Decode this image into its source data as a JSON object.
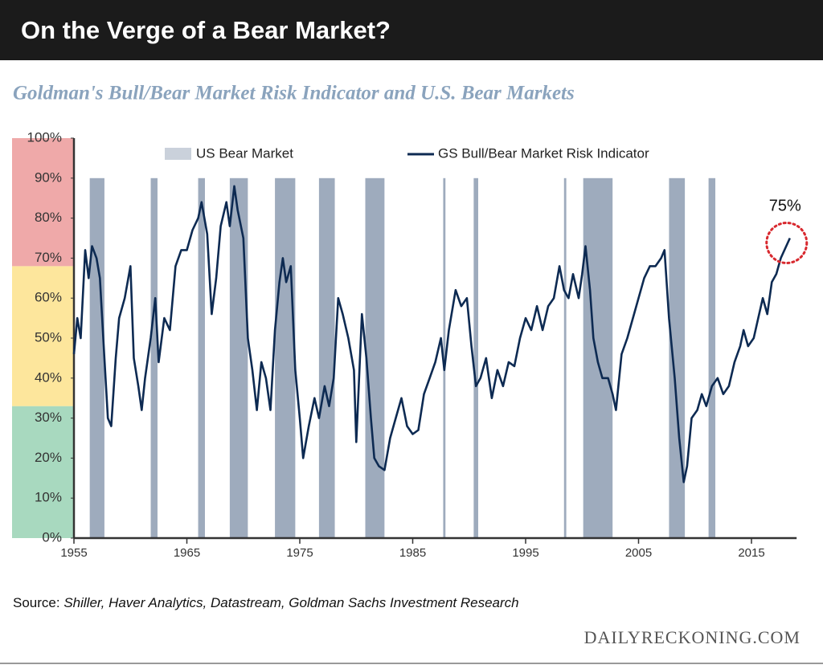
{
  "header": {
    "title": "On the Verge of a Bear Market?"
  },
  "chart_data": {
    "type": "line",
    "title": "Goldman's Bull/Bear Market Risk Indicator and U.S. Bear Markets",
    "xlim": [
      1955,
      2019
    ],
    "xticks": [
      1955,
      1965,
      1975,
      1985,
      1995,
      2005,
      2015
    ],
    "ylim": [
      0,
      100
    ],
    "yticks": [
      {
        "value": 0,
        "label": "0%"
      },
      {
        "value": 10,
        "label": "10%"
      },
      {
        "value": 20,
        "label": "20%"
      },
      {
        "value": 30,
        "label": "30%"
      },
      {
        "value": 40,
        "label": "40%"
      },
      {
        "value": 50,
        "label": "50%"
      },
      {
        "value": 60,
        "label": "60%"
      },
      {
        "value": 70,
        "label": "70%"
      },
      {
        "value": 80,
        "label": "80%"
      },
      {
        "value": 90,
        "label": "90%"
      },
      {
        "value": 100,
        "label": "100%"
      }
    ],
    "zones": [
      {
        "from": 0,
        "to": 33,
        "color": "#a8d9bf"
      },
      {
        "from": 33,
        "to": 68,
        "color": "#fde69c"
      },
      {
        "from": 68,
        "to": 100,
        "color": "#efa9a9"
      }
    ],
    "bear_markets": {
      "name": "US Bear Market",
      "color": "#9eabbd",
      "top": 90,
      "spans": [
        [
          1956.4,
          1957.7
        ],
        [
          1961.8,
          1962.4
        ],
        [
          1966.0,
          1966.6
        ],
        [
          1968.8,
          1970.4
        ],
        [
          1972.8,
          1974.6
        ],
        [
          1976.7,
          1978.1
        ],
        [
          1980.8,
          1982.5
        ],
        [
          1987.7,
          1987.9
        ],
        [
          1990.4,
          1990.8
        ],
        [
          1998.4,
          1998.6
        ],
        [
          2000.1,
          2002.7
        ],
        [
          2007.7,
          2009.1
        ],
        [
          2011.2,
          2011.8
        ]
      ]
    },
    "series": [
      {
        "name": "GS Bull/Bear Market Risk Indicator",
        "color": "#0d2a52",
        "x": [
          1955,
          1955.3,
          1955.6,
          1956,
          1956.3,
          1956.6,
          1957,
          1957.3,
          1957.7,
          1958,
          1958.3,
          1958.7,
          1959,
          1959.5,
          1960,
          1960.3,
          1960.7,
          1961,
          1961.3,
          1961.8,
          1962.2,
          1962.5,
          1963,
          1963.5,
          1964,
          1964.5,
          1965,
          1965.5,
          1966,
          1966.3,
          1966.8,
          1967.2,
          1967.6,
          1968,
          1968.5,
          1968.8,
          1969.2,
          1969.5,
          1970,
          1970.4,
          1970.8,
          1971.2,
          1971.6,
          1972,
          1972.4,
          1972.8,
          1973.2,
          1973.5,
          1973.8,
          1974.2,
          1974.6,
          1975,
          1975.3,
          1975.8,
          1976.3,
          1976.7,
          1977.2,
          1977.6,
          1978,
          1978.4,
          1978.8,
          1979.3,
          1979.8,
          1980,
          1980.5,
          1980.9,
          1981.3,
          1981.6,
          1982,
          1982.5,
          1983,
          1983.5,
          1984,
          1984.5,
          1985,
          1985.5,
          1986,
          1986.5,
          1987,
          1987.5,
          1987.8,
          1988.2,
          1988.8,
          1989.3,
          1989.8,
          1990.2,
          1990.6,
          1991,
          1991.5,
          1992,
          1992.5,
          1993,
          1993.5,
          1994,
          1994.5,
          1995,
          1995.5,
          1996,
          1996.5,
          1997,
          1997.5,
          1998,
          1998.4,
          1998.8,
          1999.2,
          1999.7,
          2000,
          2000.3,
          2000.7,
          2001,
          2001.4,
          2001.8,
          2002.3,
          2002.7,
          2003,
          2003.5,
          2004,
          2004.5,
          2005,
          2005.5,
          2006,
          2006.5,
          2007,
          2007.3,
          2007.7,
          2008.2,
          2008.6,
          2009,
          2009.3,
          2009.7,
          2010.2,
          2010.6,
          2011,
          2011.5,
          2012,
          2012.5,
          2013,
          2013.5,
          2014,
          2014.3,
          2014.7,
          2015.2,
          2015.6,
          2016,
          2016.4,
          2016.8,
          2017.2,
          2017.6,
          2018.4
        ],
        "values": [
          46,
          55,
          50,
          72,
          65,
          73,
          70,
          65,
          45,
          30,
          28,
          45,
          55,
          60,
          68,
          45,
          38,
          32,
          40,
          50,
          60,
          44,
          55,
          52,
          68,
          72,
          72,
          77,
          80,
          84,
          76,
          56,
          65,
          78,
          84,
          78,
          88,
          82,
          75,
          50,
          42,
          32,
          44,
          40,
          32,
          52,
          64,
          70,
          64,
          68,
          42,
          30,
          20,
          28,
          35,
          30,
          38,
          33,
          40,
          60,
          56,
          50,
          42,
          24,
          56,
          45,
          30,
          20,
          18,
          17,
          25,
          30,
          35,
          28,
          26,
          27,
          36,
          40,
          44,
          50,
          42,
          52,
          62,
          58,
          60,
          48,
          38,
          40,
          45,
          35,
          42,
          38,
          44,
          43,
          50,
          55,
          52,
          58,
          52,
          58,
          60,
          68,
          62,
          60,
          66,
          60,
          66,
          73,
          62,
          50,
          44,
          40,
          40,
          36,
          32,
          46,
          50,
          55,
          60,
          65,
          68,
          68,
          70,
          72,
          55,
          40,
          25,
          14,
          18,
          30,
          32,
          36,
          33,
          38,
          40,
          36,
          38,
          44,
          48,
          52,
          48,
          50,
          55,
          60,
          56,
          64,
          66,
          70,
          75
        ]
      }
    ],
    "annotation": {
      "x": 2018.4,
      "y": 75,
      "label": "75%"
    },
    "source_label": "Source:",
    "source": "Shiller, Haver Analytics, Datastream, Goldman Sachs Investment Research"
  },
  "footer": {
    "brand": "DAILYRECKONING.COM"
  }
}
